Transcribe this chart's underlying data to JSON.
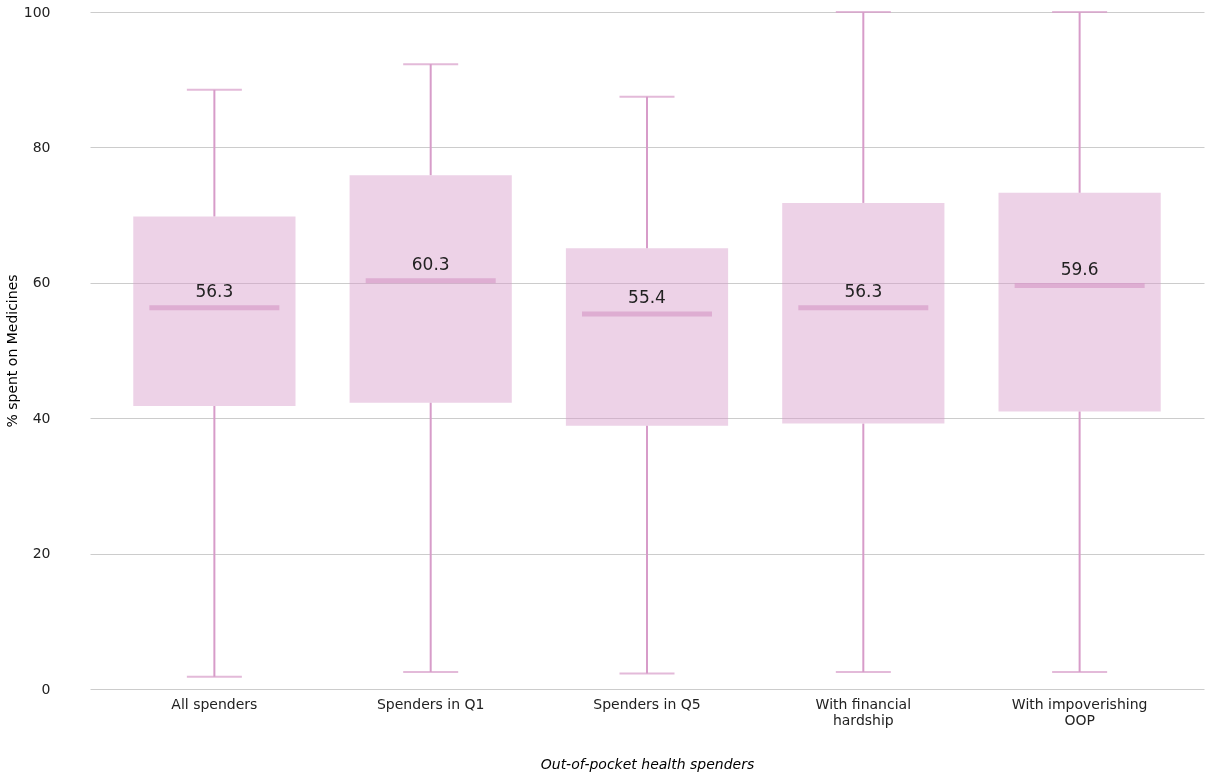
{
  "chart_data": {
    "type": "box",
    "ylabel": "% spent on Medicines",
    "xlabel": "Out-of-pocket health spenders",
    "categories": [
      "All spenders",
      "Spenders in Q1",
      "Spenders in Q5",
      "With financial\nhardship",
      "With impoverishing\nOOP"
    ],
    "series": [
      {
        "color": "#d79cc9",
        "boxes": [
          {
            "low": 1.8,
            "q1": 41.8,
            "median": 56.3,
            "q3": 69.8,
            "high": 88.5
          },
          {
            "low": 2.5,
            "q1": 42.3,
            "median": 60.3,
            "q3": 75.9,
            "high": 92.3
          },
          {
            "low": 2.3,
            "q1": 38.9,
            "median": 55.4,
            "q3": 65.1,
            "high": 87.5
          },
          {
            "low": 2.5,
            "q1": 39.2,
            "median": 56.3,
            "q3": 71.8,
            "high": 100
          },
          {
            "low": 2.5,
            "q1": 41.0,
            "median": 59.6,
            "q3": 73.3,
            "high": 100
          }
        ],
        "value_labels": [
          "56.3",
          "60.3",
          "55.4",
          "56.3",
          "59.6"
        ]
      }
    ],
    "ylim": [
      0,
      100
    ],
    "yticks": [
      0,
      20,
      40,
      60,
      80,
      100
    ],
    "grid": "y"
  }
}
